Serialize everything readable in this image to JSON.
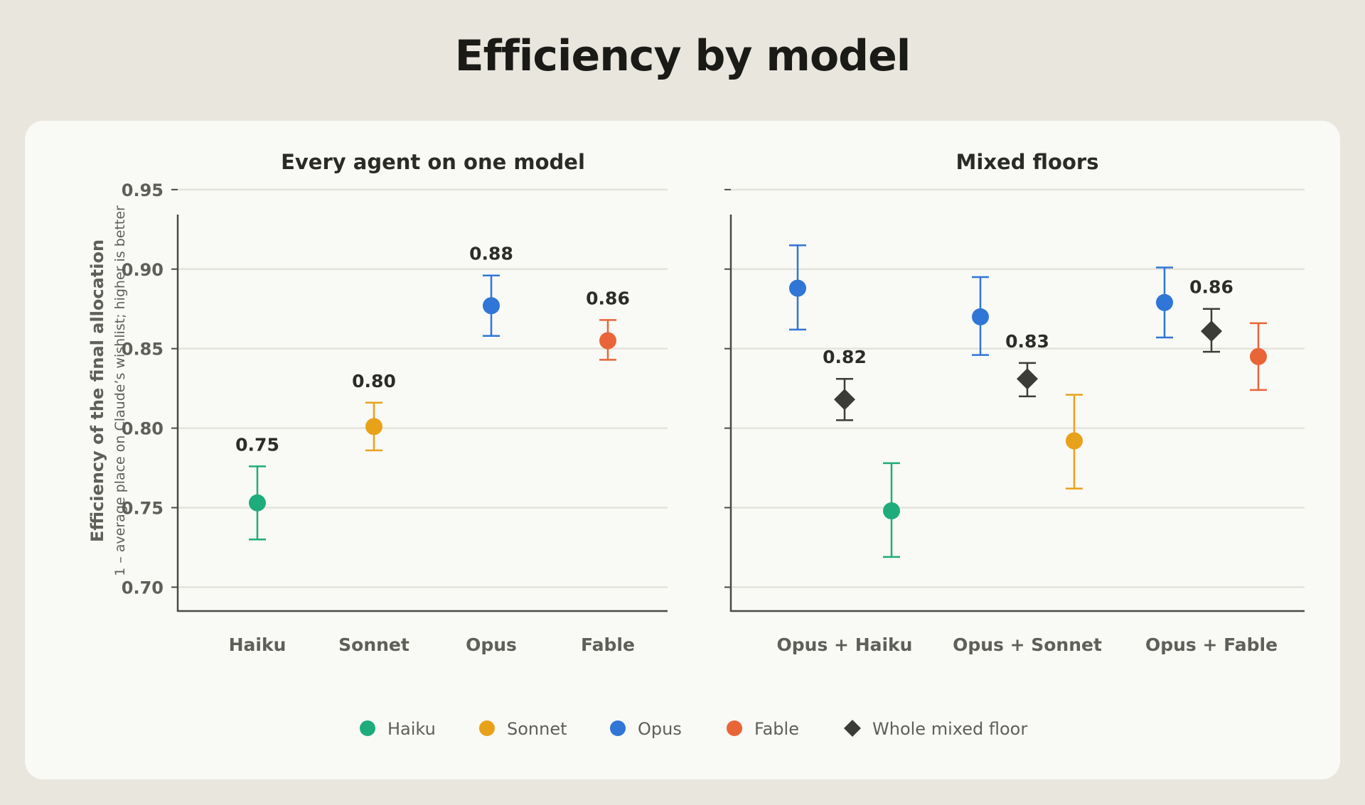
{
  "title": "Efficiency by model",
  "colors": {
    "Haiku": "#1fac7c",
    "Sonnet": "#e8a21a",
    "Opus": "#2f76d6",
    "Fable": "#e96537",
    "Whole mixed floor": "#3b3b38"
  },
  "legend": {
    "placement": "bottom-center",
    "items": [
      {
        "label": "Haiku",
        "marker": "circle"
      },
      {
        "label": "Sonnet",
        "marker": "circle"
      },
      {
        "label": "Opus",
        "marker": "circle"
      },
      {
        "label": "Fable",
        "marker": "circle"
      },
      {
        "label": "Whole mixed floor",
        "marker": "diamond"
      }
    ]
  },
  "chart_data": [
    {
      "type": "scatter",
      "title": "Every agent on one model",
      "ylabel": "Efficiency of the final allocation",
      "ylabel_sub": "1 – average place on Claude’s wishlist; higher is better",
      "ylim": [
        0.685,
        0.962
      ],
      "yticks": [
        "0.70",
        "0.75",
        "0.80",
        "0.85",
        "0.90",
        "0.95"
      ],
      "grid": true,
      "categories": [
        "Haiku",
        "Sonnet",
        "Opus",
        "Fable"
      ],
      "points": [
        {
          "category": "Haiku",
          "series": "Haiku",
          "marker": "circle",
          "value": 0.753,
          "low": 0.73,
          "high": 0.776,
          "label": "0.75"
        },
        {
          "category": "Sonnet",
          "series": "Sonnet",
          "marker": "circle",
          "value": 0.801,
          "low": 0.786,
          "high": 0.816,
          "label": "0.80"
        },
        {
          "category": "Opus",
          "series": "Opus",
          "marker": "circle",
          "value": 0.877,
          "low": 0.858,
          "high": 0.896,
          "label": "0.88"
        },
        {
          "category": "Fable",
          "series": "Fable",
          "marker": "circle",
          "value": 0.855,
          "low": 0.843,
          "high": 0.868,
          "label": "0.86"
        }
      ]
    },
    {
      "type": "scatter",
      "title": "Mixed floors",
      "ylim": [
        0.685,
        0.962
      ],
      "grid": true,
      "categories": [
        "Opus + Haiku",
        "Opus + Sonnet",
        "Opus + Fable"
      ],
      "points": [
        {
          "category": "Opus + Haiku",
          "series": "Opus",
          "marker": "circle",
          "value": 0.888,
          "low": 0.862,
          "high": 0.915,
          "label": ""
        },
        {
          "category": "Opus + Haiku",
          "series": "Whole mixed floor",
          "marker": "diamond",
          "value": 0.818,
          "low": 0.805,
          "high": 0.831,
          "label": "0.82"
        },
        {
          "category": "Opus + Haiku",
          "series": "Haiku",
          "marker": "circle",
          "value": 0.748,
          "low": 0.719,
          "high": 0.778,
          "label": ""
        },
        {
          "category": "Opus + Sonnet",
          "series": "Opus",
          "marker": "circle",
          "value": 0.87,
          "low": 0.846,
          "high": 0.895,
          "label": ""
        },
        {
          "category": "Opus + Sonnet",
          "series": "Whole mixed floor",
          "marker": "diamond",
          "value": 0.831,
          "low": 0.82,
          "high": 0.841,
          "label": "0.83"
        },
        {
          "category": "Opus + Sonnet",
          "series": "Sonnet",
          "marker": "circle",
          "value": 0.792,
          "low": 0.762,
          "high": 0.821,
          "label": ""
        },
        {
          "category": "Opus + Fable",
          "series": "Opus",
          "marker": "circle",
          "value": 0.879,
          "low": 0.857,
          "high": 0.901,
          "label": ""
        },
        {
          "category": "Opus + Fable",
          "series": "Whole mixed floor",
          "marker": "diamond",
          "value": 0.861,
          "low": 0.848,
          "high": 0.875,
          "label": "0.86"
        },
        {
          "category": "Opus + Fable",
          "series": "Fable",
          "marker": "circle",
          "value": 0.845,
          "low": 0.824,
          "high": 0.866,
          "label": ""
        }
      ]
    }
  ]
}
